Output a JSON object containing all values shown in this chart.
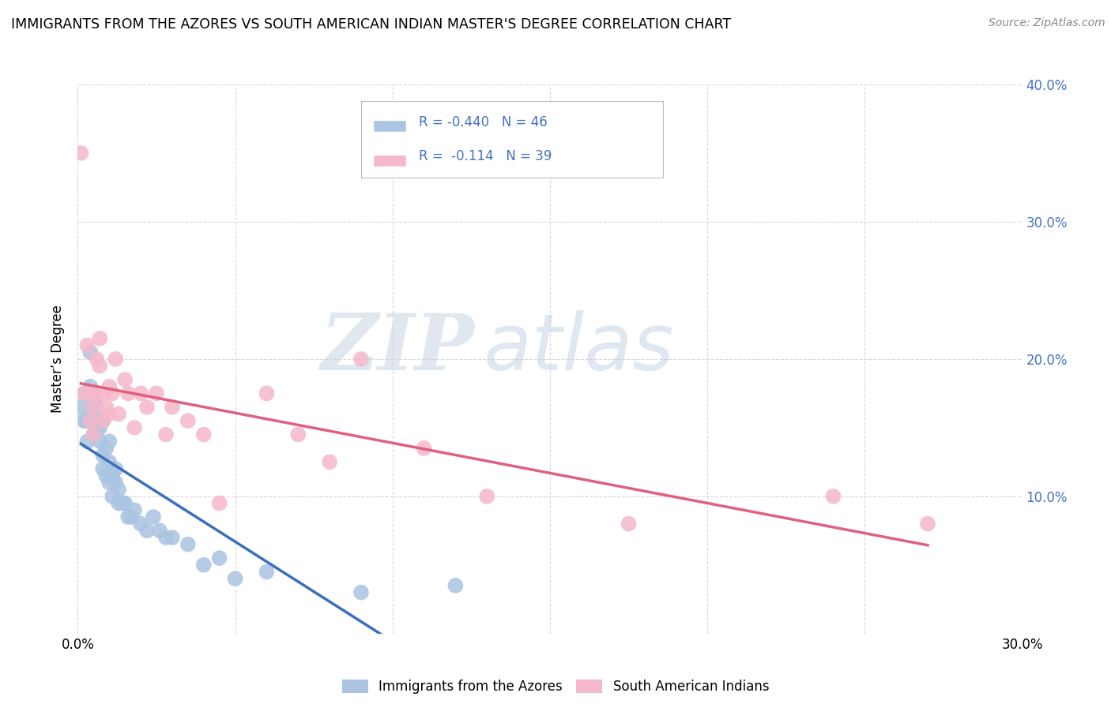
{
  "title": "IMMIGRANTS FROM THE AZORES VS SOUTH AMERICAN INDIAN MASTER'S DEGREE CORRELATION CHART",
  "source": "Source: ZipAtlas.com",
  "ylabel": "Master’s Degree",
  "xlim": [
    0.0,
    0.3
  ],
  "ylim": [
    0.0,
    0.4
  ],
  "R_blue": -0.44,
  "N_blue": 46,
  "R_pink": -0.114,
  "N_pink": 39,
  "blue_color": "#aac4e2",
  "pink_color": "#f5b8ca",
  "blue_line_color": "#3a6fba",
  "pink_line_color": "#e06080",
  "legend_label_blue": "Immigrants from the Azores",
  "legend_label_pink": "South American Indians",
  "watermark_zip": "ZIP",
  "watermark_atlas": "atlas",
  "blue_scatter_x": [
    0.001,
    0.002,
    0.002,
    0.003,
    0.003,
    0.004,
    0.004,
    0.005,
    0.005,
    0.005,
    0.006,
    0.006,
    0.007,
    0.007,
    0.008,
    0.008,
    0.008,
    0.009,
    0.009,
    0.01,
    0.01,
    0.01,
    0.011,
    0.011,
    0.012,
    0.012,
    0.013,
    0.013,
    0.014,
    0.015,
    0.016,
    0.017,
    0.018,
    0.02,
    0.022,
    0.024,
    0.026,
    0.028,
    0.03,
    0.035,
    0.04,
    0.045,
    0.05,
    0.06,
    0.09,
    0.12
  ],
  "blue_scatter_y": [
    0.165,
    0.175,
    0.155,
    0.155,
    0.14,
    0.18,
    0.205,
    0.16,
    0.145,
    0.17,
    0.15,
    0.165,
    0.14,
    0.15,
    0.12,
    0.13,
    0.155,
    0.115,
    0.135,
    0.125,
    0.11,
    0.14,
    0.115,
    0.1,
    0.11,
    0.12,
    0.095,
    0.105,
    0.095,
    0.095,
    0.085,
    0.085,
    0.09,
    0.08,
    0.075,
    0.085,
    0.075,
    0.07,
    0.07,
    0.065,
    0.05,
    0.055,
    0.04,
    0.045,
    0.03,
    0.035
  ],
  "pink_scatter_x": [
    0.001,
    0.002,
    0.003,
    0.004,
    0.004,
    0.005,
    0.005,
    0.006,
    0.006,
    0.007,
    0.007,
    0.008,
    0.008,
    0.009,
    0.01,
    0.01,
    0.011,
    0.012,
    0.013,
    0.015,
    0.016,
    0.018,
    0.02,
    0.022,
    0.025,
    0.028,
    0.03,
    0.035,
    0.04,
    0.045,
    0.06,
    0.07,
    0.08,
    0.09,
    0.11,
    0.13,
    0.175,
    0.24,
    0.27
  ],
  "pink_scatter_y": [
    0.35,
    0.175,
    0.21,
    0.175,
    0.155,
    0.165,
    0.145,
    0.2,
    0.175,
    0.215,
    0.195,
    0.175,
    0.155,
    0.165,
    0.18,
    0.16,
    0.175,
    0.2,
    0.16,
    0.185,
    0.175,
    0.15,
    0.175,
    0.165,
    0.175,
    0.145,
    0.165,
    0.155,
    0.145,
    0.095,
    0.175,
    0.145,
    0.125,
    0.2,
    0.135,
    0.1,
    0.08,
    0.1,
    0.08
  ]
}
